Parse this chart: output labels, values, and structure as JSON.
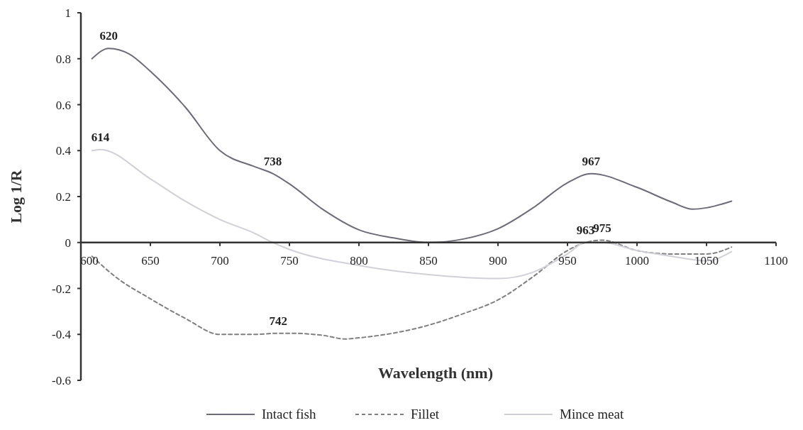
{
  "chart_data": {
    "type": "line",
    "xlabel": "Wavelength (nm)",
    "ylabel": "Log 1/R",
    "xlim": [
      600,
      1100
    ],
    "xticks": [
      600,
      650,
      700,
      750,
      800,
      850,
      900,
      950,
      1000,
      1050,
      1100
    ],
    "ylim": [
      -0.6,
      1
    ],
    "yticks": [
      -0.6,
      -0.4,
      -0.2,
      0,
      0.2,
      0.4,
      0.6,
      0.8,
      1
    ],
    "grid": false,
    "legend": "bottom",
    "marker": "none",
    "series": [
      {
        "name": "Intact fish",
        "color": "#6b6b7a",
        "line_style": "solid",
        "x": [
          608,
          620,
          635,
          650,
          675,
          700,
          725,
          738,
          750,
          775,
          800,
          825,
          850,
          875,
          900,
          925,
          950,
          967,
          1000,
          1025,
          1040,
          1050,
          1068
        ],
        "values": [
          0.8,
          0.845,
          0.82,
          0.745,
          0.59,
          0.4,
          0.33,
          0.3,
          0.255,
          0.14,
          0.055,
          0.02,
          0,
          0.015,
          0.06,
          0.15,
          0.26,
          0.3,
          0.24,
          0.176,
          0.145,
          0.151,
          0.18
        ]
      },
      {
        "name": "Fillet",
        "color": "#7f7f7f",
        "line_style": "dashed",
        "x": [
          608,
          625,
          650,
          675,
          700,
          725,
          742,
          750,
          775,
          790,
          800,
          850,
          875,
          900,
          925,
          950,
          963,
          975,
          1000,
          1025,
          1050,
          1068
        ],
        "values": [
          -0.06,
          -0.15,
          -0.245,
          -0.33,
          -0.4,
          -0.4,
          -0.395,
          -0.395,
          -0.405,
          -0.42,
          -0.415,
          -0.36,
          -0.31,
          -0.25,
          -0.15,
          -0.035,
          0,
          0.01,
          -0.035,
          -0.05,
          -0.05,
          -0.02
        ]
      },
      {
        "name": "Mince meat",
        "color": "#d0d0d8",
        "line_style": "solid",
        "x": [
          608,
          614,
          650,
          675,
          700,
          725,
          738,
          750,
          800,
          850,
          900,
          925,
          950,
          963,
          975,
          1000,
          1025,
          1050,
          1068
        ],
        "values": [
          0.4,
          0.405,
          0.277,
          0.18,
          0.1,
          0.04,
          0,
          -0.03,
          -0.1,
          -0.14,
          -0.157,
          -0.13,
          -0.05,
          0,
          0,
          -0.035,
          -0.06,
          -0.08,
          -0.04
        ]
      }
    ],
    "annotations": [
      {
        "text": "620",
        "x": 620,
        "y": 0.845
      },
      {
        "text": "614",
        "x": 614,
        "y": 0.405
      },
      {
        "text": "738",
        "x": 738,
        "y": 0.3
      },
      {
        "text": "742",
        "x": 742,
        "y": -0.395
      },
      {
        "text": "967",
        "x": 967,
        "y": 0.3
      },
      {
        "text": "963",
        "x": 963,
        "y": 0
      },
      {
        "text": "975",
        "x": 975,
        "y": 0.01
      }
    ]
  }
}
